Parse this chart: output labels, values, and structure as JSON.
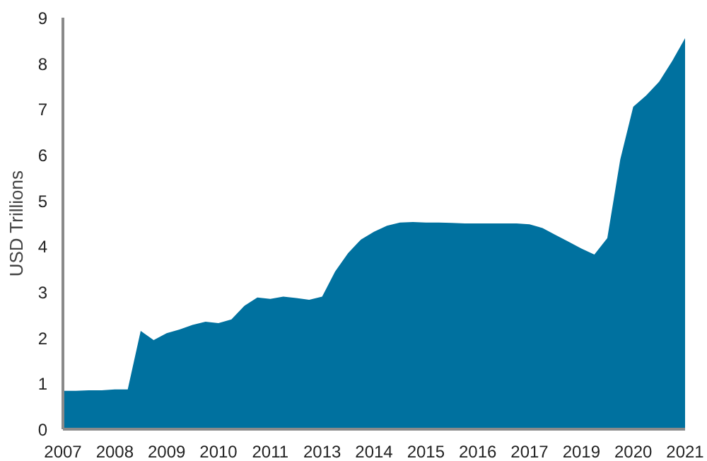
{
  "chart_data": {
    "type": "area",
    "ylabel": "USD Trillions",
    "ylim": [
      0,
      9
    ],
    "yticks": [
      0,
      1,
      2,
      3,
      4,
      5,
      6,
      7,
      8,
      9
    ],
    "grid": false,
    "categories": [
      "2007",
      null,
      null,
      null,
      "2008",
      null,
      null,
      null,
      "2009",
      null,
      null,
      null,
      "2010",
      null,
      null,
      null,
      "2011",
      null,
      null,
      null,
      "2013",
      null,
      null,
      null,
      "2014",
      null,
      null,
      null,
      "2015",
      null,
      null,
      null,
      "2016",
      null,
      null,
      null,
      "2017",
      null,
      null,
      null,
      "2019",
      null,
      null,
      null,
      "2020",
      null,
      null,
      null,
      "2021"
    ],
    "series": [
      {
        "color": "#00719f",
        "values": [
          0.84,
          0.84,
          0.85,
          0.85,
          0.87,
          0.87,
          2.15,
          1.95,
          2.1,
          2.18,
          2.28,
          2.35,
          2.32,
          2.4,
          2.7,
          2.88,
          2.85,
          2.9,
          2.87,
          2.83,
          2.9,
          3.45,
          3.85,
          4.15,
          4.32,
          4.45,
          4.52,
          4.53,
          4.52,
          4.52,
          4.51,
          4.5,
          4.5,
          4.5,
          4.5,
          4.5,
          4.48,
          4.4,
          4.25,
          4.1,
          3.95,
          3.82,
          4.18,
          5.9,
          7.05,
          7.3,
          7.6,
          8.05,
          8.55
        ]
      }
    ]
  }
}
